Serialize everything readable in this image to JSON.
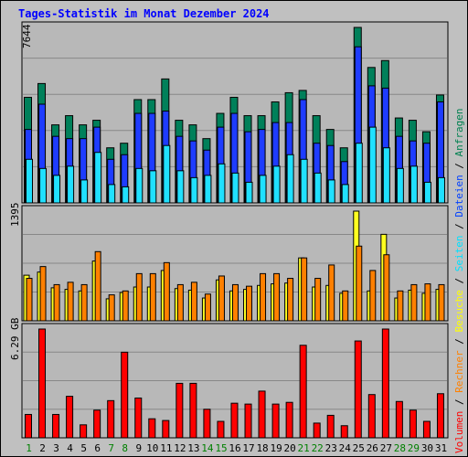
{
  "title": "Tages-Statistik im Monat Dezember 2024",
  "y_labels": {
    "top": "7644",
    "middle": "1395",
    "bottom": "6.29 GB"
  },
  "legend": [
    {
      "text": "Volumen",
      "color": "#ff0000"
    },
    {
      "text": " / ",
      "color": "#000000"
    },
    {
      "text": "Rechner",
      "color": "#ff8000"
    },
    {
      "text": " / ",
      "color": "#000000"
    },
    {
      "text": "Besuche",
      "color": "#ffff00"
    },
    {
      "text": " / ",
      "color": "#000000"
    },
    {
      "text": "Seiten",
      "color": "#00e0ff"
    },
    {
      "text": " / ",
      "color": "#000000"
    },
    {
      "text": "Dateien",
      "color": "#0040ff"
    },
    {
      "text": " / ",
      "color": "#000000"
    },
    {
      "text": "Anfragen",
      "color": "#008050"
    }
  ],
  "colors": {
    "anfragen": "#00805a",
    "dateien": "#1e3cff",
    "seiten": "#20e0ff",
    "besuche": "#ffff20",
    "rechner": "#ff8000",
    "volumen": "#ff0000",
    "weekday": "#000000",
    "weekend": "#008000"
  },
  "chart_data": {
    "type": "bar",
    "categories": [
      "1",
      "2",
      "3",
      "4",
      "5",
      "6",
      "7",
      "8",
      "9",
      "10",
      "11",
      "12",
      "13",
      "14",
      "15",
      "16",
      "17",
      "18",
      "19",
      "20",
      "21",
      "22",
      "23",
      "24",
      "25",
      "26",
      "27",
      "28",
      "29",
      "30",
      "31"
    ],
    "weekend_days": [
      "1",
      "7",
      "8",
      "14",
      "15",
      "21",
      "22",
      "28",
      "29"
    ],
    "panels": [
      {
        "name": "requests",
        "ymax": 7644,
        "series": [
          {
            "name": "Anfragen",
            "values": [
              4600,
              5200,
              3400,
              3800,
              3400,
              3600,
              2400,
              2600,
              4500,
              4500,
              5400,
              3600,
              3400,
              2800,
              3900,
              4600,
              3800,
              3800,
              4400,
              4800,
              4900,
              3800,
              3200,
              2400,
              7644,
              5900,
              6200,
              3700,
              3600,
              3100,
              4700
            ]
          },
          {
            "name": "Dateien",
            "values": [
              3200,
              4300,
              2900,
              2800,
              2800,
              3300,
              1900,
              2100,
              3900,
              3900,
              4000,
              2900,
              2700,
              2300,
              3300,
              3900,
              3100,
              3200,
              3500,
              3500,
              4500,
              2600,
              2500,
              1800,
              6800,
              5100,
              5000,
              2900,
              2700,
              2600,
              4400
            ]
          },
          {
            "name": "Seiten",
            "values": [
              1900,
              1500,
              1200,
              1600,
              1000,
              2200,
              800,
              700,
              1500,
              1400,
              2500,
              1400,
              1100,
              1200,
              1700,
              1300,
              900,
              1200,
              1600,
              2100,
              1900,
              1300,
              1000,
              800,
              2600,
              3300,
              2400,
              1500,
              1600,
              900,
              1100
            ]
          }
        ]
      },
      {
        "name": "visits",
        "ymax": 1395,
        "series": [
          {
            "name": "Besuche",
            "values": [
              580,
              620,
              420,
              400,
              380,
              760,
              280,
              360,
              430,
              430,
              640,
              410,
              390,
              290,
              520,
              380,
              400,
              450,
              470,
              480,
              800,
              430,
              450,
              350,
              1395,
              380,
              1100,
              290,
              390,
              350,
              400
            ]
          },
          {
            "name": "Rechner",
            "values": [
              540,
              690,
              460,
              490,
              460,
              880,
              330,
              380,
              600,
              600,
              740,
              460,
              490,
              340,
              570,
              460,
              440,
              600,
              600,
              540,
              800,
              540,
              710,
              380,
              950,
              640,
              840,
              380,
              460,
              470,
              460
            ]
          }
        ]
      },
      {
        "name": "volume",
        "ymax": 6.29,
        "series": [
          {
            "name": "Volumen",
            "values": [
              1.35,
              6.29,
              1.35,
              2.4,
              0.75,
              1.6,
              2.15,
              4.95,
              2.3,
              1.1,
              1.0,
              3.15,
              3.15,
              1.65,
              0.95,
              2.0,
              1.95,
              2.7,
              1.95,
              2.05,
              5.35,
              0.85,
              1.3,
              0.7,
              5.6,
              2.5,
              6.29,
              2.1,
              1.6,
              0.95,
              2.55
            ]
          }
        ]
      }
    ]
  }
}
